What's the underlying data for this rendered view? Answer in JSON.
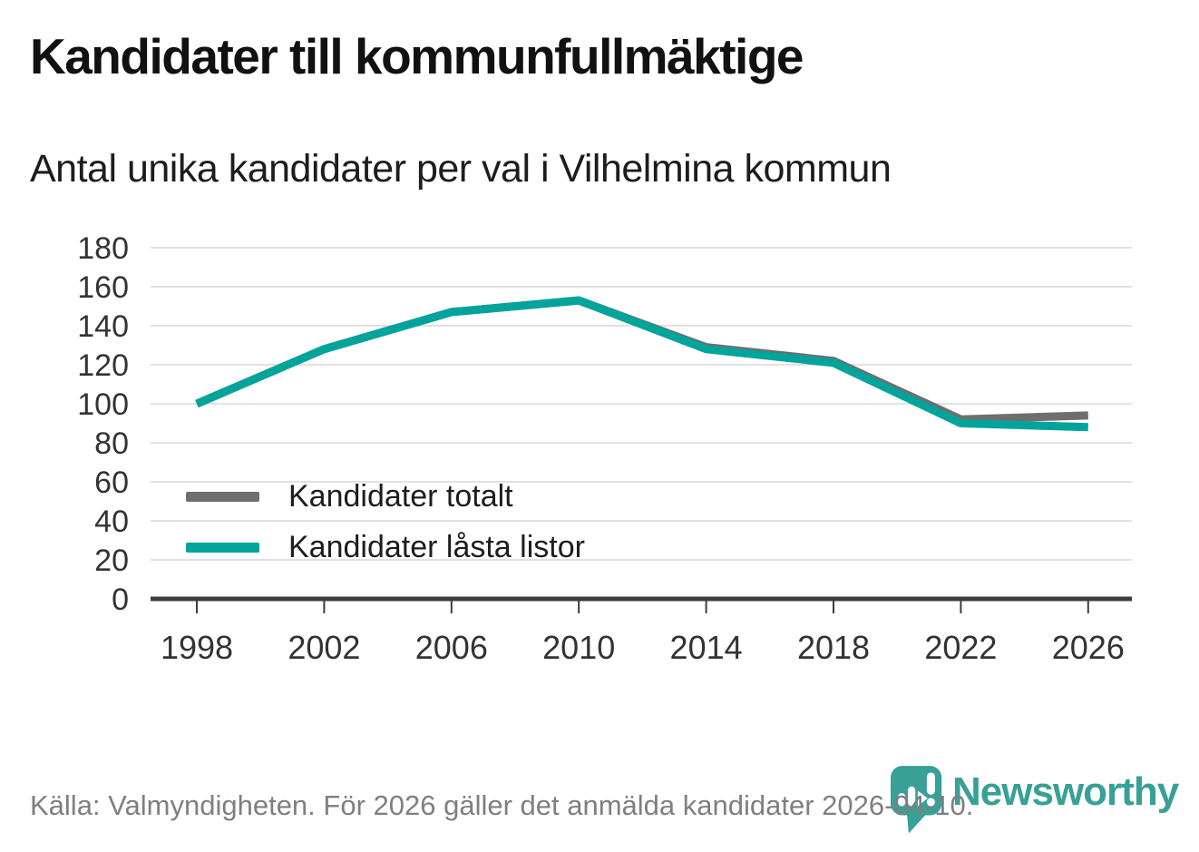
{
  "header": {
    "title": "Kandidater till kommunfullmäktige",
    "subtitle": "Antal unika kandidater per val i Vilhelmina kommun"
  },
  "chart_data": {
    "type": "line",
    "x": [
      1998,
      2002,
      2006,
      2010,
      2014,
      2018,
      2022,
      2026
    ],
    "series": [
      {
        "name": "Kandidater totalt",
        "color": "#6e6e6e",
        "values": [
          100,
          128,
          147,
          153,
          129,
          122,
          92,
          94
        ]
      },
      {
        "name": "Kandidater låsta listor",
        "color": "#00a49a",
        "values": [
          100,
          128,
          147,
          153,
          128,
          121,
          90,
          88
        ]
      }
    ],
    "title": "Kandidater till kommunfullmäktige",
    "subtitle": "Antal unika kandidater per val i Vilhelmina kommun",
    "xlabel": "",
    "ylabel": "",
    "ylim": [
      0,
      180
    ],
    "ytick_step": 20,
    "grid": true,
    "legend_position": "inside-left-middle",
    "styles": {
      "axis_color": "#3d3d3d",
      "gridline_color": "#e2e2e2",
      "tick_label_color": "#333333",
      "line_width": 9
    }
  },
  "footer": {
    "source_text": "Källa: Valmyndigheten. För 2026 gäller det anmälda kandidater 2026-04-10."
  },
  "logo": {
    "brand": "Newsworthy",
    "color": "#38a096",
    "icon": "newsworthy-pin-barchart-icon"
  }
}
